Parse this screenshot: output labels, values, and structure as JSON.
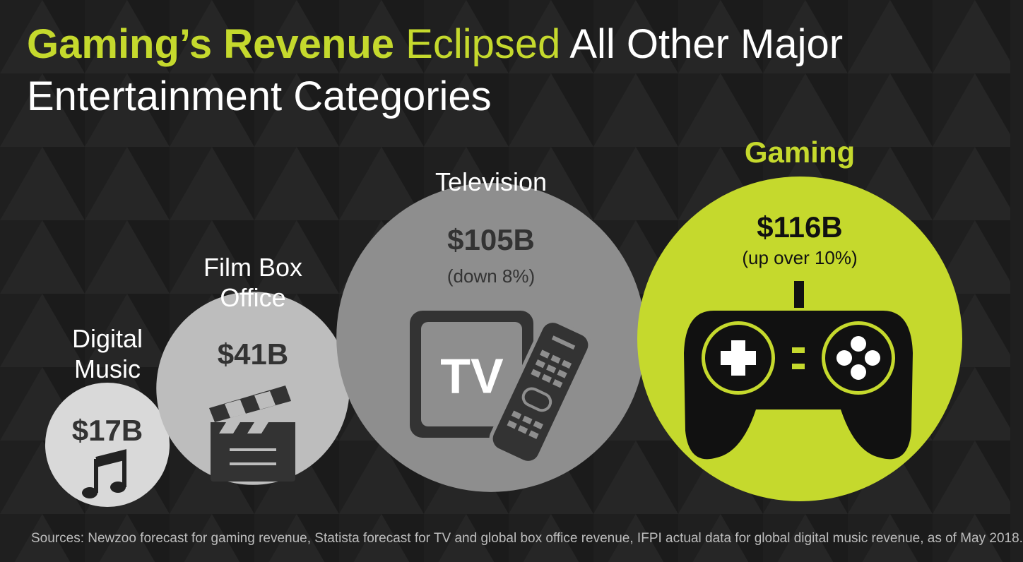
{
  "chart_data": {
    "type": "bubble",
    "title_parts": [
      "Gaming’s Revenue",
      "Eclipsed",
      "All Other Major Entertainment Categories"
    ],
    "categories": [
      "Digital Music",
      "Film Box Office",
      "Television",
      "Gaming"
    ],
    "values": [
      17,
      41,
      105,
      116
    ],
    "value_labels": [
      "$17B",
      "$41B",
      "$105B",
      "$116B"
    ],
    "notes": [
      null,
      null,
      "(down 8%)",
      "(up over 10%)"
    ],
    "colors": [
      "#d9d9d9",
      "#bdbdbd",
      "#8e8e8e",
      "#c5d92d"
    ],
    "source": "Sources: Newzoo forecast for gaming revenue, Statista forecast for TV and global box office revenue, IFPI actual data for global digital music revenue, as of May 2018."
  }
}
